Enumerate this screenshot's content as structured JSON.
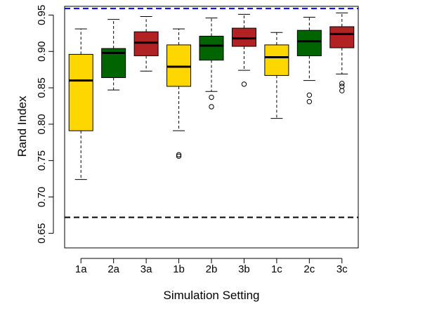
{
  "chart_data": {
    "type": "boxplot",
    "xlabel": "Simulation Setting",
    "ylabel": "Rand Index",
    "ylim": [
      0.63,
      0.962
    ],
    "yticks": [
      "0.65",
      "0.70",
      "0.75",
      "0.80",
      "0.85",
      "0.90",
      "0.95"
    ],
    "grid": false,
    "reference_lines": [
      {
        "value": 0.959,
        "color": "#0000ff",
        "style": "dashed"
      },
      {
        "value": 0.672,
        "color": "#000000",
        "style": "dashed"
      }
    ],
    "categories": [
      "1a",
      "2a",
      "3a",
      "1b",
      "2b",
      "3b",
      "1c",
      "2c",
      "3c"
    ],
    "boxes": [
      {
        "category": "1a",
        "color": "#ffd700",
        "whisker_low": 0.724,
        "q1": 0.791,
        "median": 0.86,
        "q3": 0.896,
        "whisker_high": 0.931,
        "outliers": []
      },
      {
        "category": "2a",
        "color": "#006400",
        "whisker_low": 0.847,
        "q1": 0.864,
        "median": 0.898,
        "q3": 0.904,
        "whisker_high": 0.944,
        "outliers": []
      },
      {
        "category": "3a",
        "color": "#b22222",
        "whisker_low": 0.873,
        "q1": 0.894,
        "median": 0.912,
        "q3": 0.927,
        "whisker_high": 0.948,
        "outliers": []
      },
      {
        "category": "1b",
        "color": "#ffd700",
        "whisker_low": 0.791,
        "q1": 0.852,
        "median": 0.879,
        "q3": 0.909,
        "whisker_high": 0.931,
        "outliers": [
          0.756,
          0.758
        ]
      },
      {
        "category": "2b",
        "color": "#006400",
        "whisker_low": 0.845,
        "q1": 0.888,
        "median": 0.908,
        "q3": 0.921,
        "whisker_high": 0.946,
        "outliers": [
          0.824,
          0.837
        ]
      },
      {
        "category": "3b",
        "color": "#b22222",
        "whisker_low": 0.874,
        "q1": 0.907,
        "median": 0.918,
        "q3": 0.932,
        "whisker_high": 0.951,
        "outliers": [
          0.855
        ]
      },
      {
        "category": "1c",
        "color": "#ffd700",
        "whisker_low": 0.808,
        "q1": 0.867,
        "median": 0.892,
        "q3": 0.909,
        "whisker_high": 0.926,
        "outliers": []
      },
      {
        "category": "2c",
        "color": "#006400",
        "whisker_low": 0.86,
        "q1": 0.894,
        "median": 0.914,
        "q3": 0.929,
        "whisker_high": 0.947,
        "outliers": [
          0.831,
          0.84
        ]
      },
      {
        "category": "3c",
        "color": "#b22222",
        "whisker_low": 0.869,
        "q1": 0.905,
        "median": 0.924,
        "q3": 0.934,
        "whisker_high": 0.953,
        "outliers": [
          0.846,
          0.852,
          0.856
        ]
      }
    ]
  }
}
